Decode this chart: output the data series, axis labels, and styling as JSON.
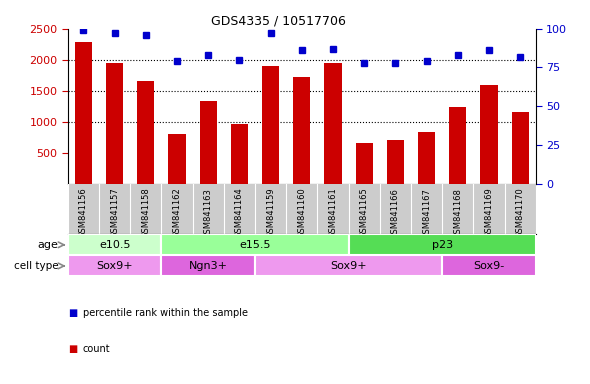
{
  "title": "GDS4335 / 10517706",
  "samples": [
    "GSM841156",
    "GSM841157",
    "GSM841158",
    "GSM841162",
    "GSM841163",
    "GSM841164",
    "GSM841159",
    "GSM841160",
    "GSM841161",
    "GSM841165",
    "GSM841166",
    "GSM841167",
    "GSM841168",
    "GSM841169",
    "GSM841170"
  ],
  "counts": [
    2280,
    1950,
    1660,
    800,
    1340,
    960,
    1900,
    1720,
    1950,
    660,
    700,
    840,
    1230,
    1600,
    1160
  ],
  "percentiles": [
    99,
    97,
    96,
    79,
    83,
    80,
    97,
    86,
    87,
    78,
    78,
    79,
    83,
    86,
    82
  ],
  "ylim_left": [
    0,
    2500
  ],
  "ylim_right": [
    0,
    100
  ],
  "yticks_left": [
    500,
    1000,
    1500,
    2000,
    2500
  ],
  "yticks_right": [
    0,
    25,
    50,
    75,
    100
  ],
  "bar_color": "#cc0000",
  "dot_color": "#0000cc",
  "age_groups": [
    {
      "label": "e10.5",
      "start": 0,
      "end": 3,
      "color": "#ccffcc"
    },
    {
      "label": "e15.5",
      "start": 3,
      "end": 9,
      "color": "#99ff99"
    },
    {
      "label": "p23",
      "start": 9,
      "end": 15,
      "color": "#55dd55"
    }
  ],
  "cell_groups": [
    {
      "label": "Sox9+",
      "start": 0,
      "end": 3,
      "color": "#ee99ee"
    },
    {
      "label": "Ngn3+",
      "start": 3,
      "end": 6,
      "color": "#dd66dd"
    },
    {
      "label": "Sox9+",
      "start": 6,
      "end": 12,
      "color": "#ee99ee"
    },
    {
      "label": "Sox9-",
      "start": 12,
      "end": 15,
      "color": "#dd66dd"
    }
  ],
  "tick_color_left": "#cc0000",
  "tick_color_right": "#0000cc",
  "xtick_bg_color": "#cccccc",
  "spine_color": "#000000",
  "grid_yticks": [
    1000,
    1500,
    2000
  ],
  "legend_items": [
    {
      "label": "count",
      "color": "#cc0000"
    },
    {
      "label": "percentile rank within the sample",
      "color": "#0000cc"
    }
  ]
}
